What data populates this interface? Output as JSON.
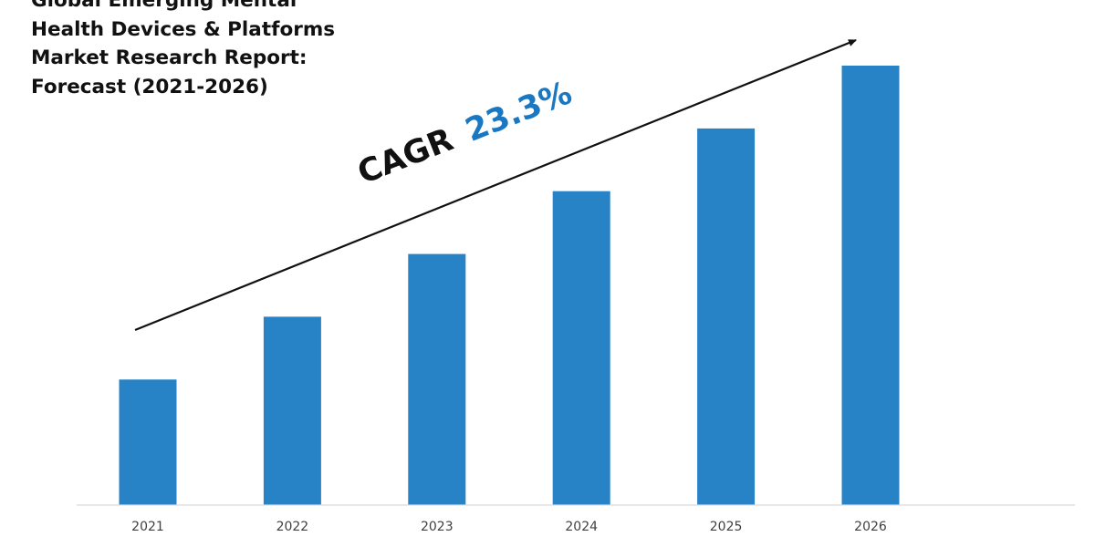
{
  "chart_data": {
    "type": "bar",
    "title_lines": [
      "Global Emerging Mental",
      "Health Devices & Platforms",
      "Market Research Report:",
      "Forecast (2021-2026)"
    ],
    "categories": [
      "2021",
      "2022",
      "2023",
      "2024",
      "2025",
      "2026"
    ],
    "values": [
      1.0,
      1.5,
      2.0,
      2.5,
      3.0,
      3.5
    ],
    "ylim": [
      0,
      3.5
    ],
    "bar_color": "#2882C6",
    "axis_color": "#D9D9D9",
    "grid": false,
    "annotation": {
      "label": "CAGR",
      "value": "23.3%",
      "value_color": "#1A78C2",
      "arrow": "trend arrow rising toward the 2026 bar"
    }
  }
}
